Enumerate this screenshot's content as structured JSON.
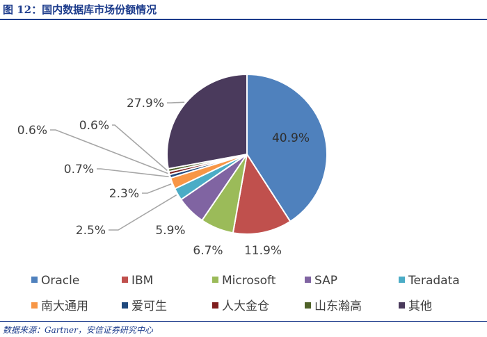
{
  "figure": {
    "title": "图 12：国内数据库市场份额情况",
    "source": "数据来源：Gartner，安信证券研究中心"
  },
  "chart_data": {
    "type": "pie",
    "title": "图 12：国内数据库市场份额情况",
    "legend_position": "bottom",
    "slices": [
      {
        "name": "Oracle",
        "value": 40.9,
        "label": "40.9%",
        "color": "#4f81bd"
      },
      {
        "name": "IBM",
        "value": 11.9,
        "label": "11.9%",
        "color": "#c0504d"
      },
      {
        "name": "Microsoft",
        "value": 6.7,
        "label": "6.7%",
        "color": "#9bbb59"
      },
      {
        "name": "SAP",
        "value": 5.9,
        "label": "5.9%",
        "color": "#8064a2"
      },
      {
        "name": "Teradata",
        "value": 2.5,
        "label": "2.5%",
        "color": "#4bacc6"
      },
      {
        "name": "南大通用",
        "value": 2.3,
        "label": "2.3%",
        "color": "#f79646"
      },
      {
        "name": "爱可生",
        "value": 0.7,
        "label": "0.7%",
        "color": "#1f497d"
      },
      {
        "name": "人大金仓",
        "value": 0.6,
        "label": "0.6%",
        "color": "#7f1d1d"
      },
      {
        "name": "山东瀚高",
        "value": 0.6,
        "label": "0.6%",
        "color": "#4f6228"
      },
      {
        "name": "其他",
        "value": 27.9,
        "label": "27.9%",
        "color": "#4a3a5c"
      }
    ]
  }
}
